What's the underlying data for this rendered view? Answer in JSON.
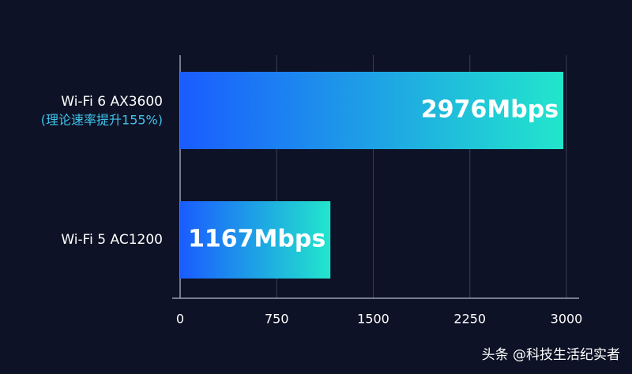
{
  "chart_data": {
    "type": "hbar",
    "categories": [
      "Wi-Fi 6 AX3600",
      "Wi-Fi 5 AC1200"
    ],
    "category_subtitles": [
      "(理论速率提升155%)",
      null
    ],
    "values": [
      2976,
      1167
    ],
    "value_labels": [
      "2976Mbps",
      "1167Mbps"
    ],
    "gradient": [
      "#1a5cff",
      "#22e6cc"
    ],
    "xlim": [
      0,
      3000
    ],
    "xticks": [
      0,
      750,
      1500,
      2250,
      3000
    ],
    "grid": true
  },
  "watermark": "头条 @科技生活纪实者"
}
